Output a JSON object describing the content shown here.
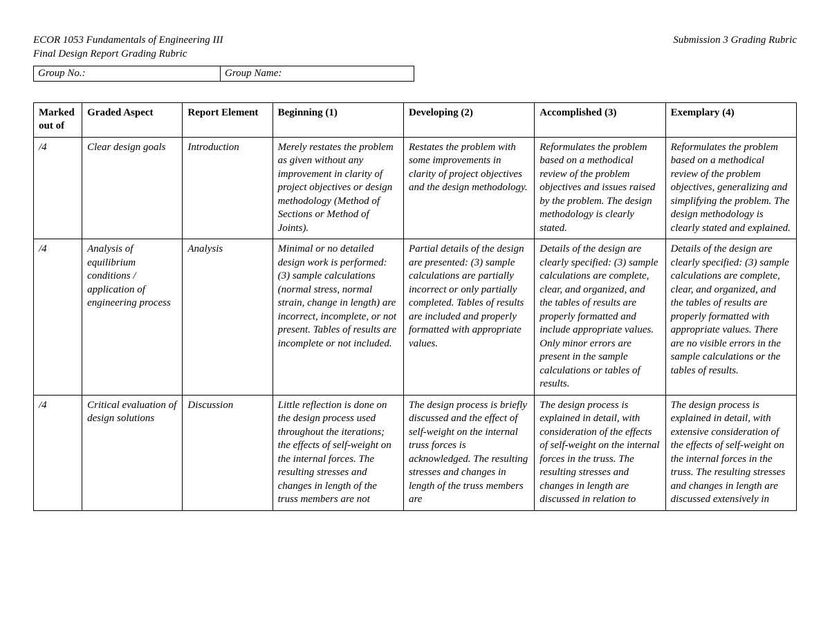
{
  "header": {
    "course": "ECOR 1053 Fundamentals of Engineering III",
    "subtitle": "Final Design Report Grading Rubric",
    "right": "Submission 3 Grading Rubric"
  },
  "group": {
    "no_label": "Group No.:",
    "name_label": "Group Name:"
  },
  "rubric": {
    "type": "table",
    "columns": [
      {
        "label": "Marked out of",
        "class": "col-marked"
      },
      {
        "label": "Graded Aspect",
        "class": "col-aspect"
      },
      {
        "label": "Report Element",
        "class": "col-element"
      },
      {
        "label": "Beginning (1)",
        "class": "col-level"
      },
      {
        "label": "Developing (2)",
        "class": "col-level"
      },
      {
        "label": "Accomplished (3)",
        "class": "col-level"
      },
      {
        "label": "Exemplary (4)",
        "class": "col-level"
      }
    ],
    "rows": [
      {
        "marked": "/4",
        "aspect": "Clear design goals",
        "element": "Introduction",
        "l1": "Merely restates the problem as given without any improvement in clarity of project objectives or design methodology (Method of Sections or Method of Joints).",
        "l2": "Restates the problem with some improvements in clarity of project objectives and the design methodology.",
        "l3": "Reformulates the problem based on a methodical review of the problem objectives and issues raised by the problem. The design methodology is clearly stated.",
        "l4": "Reformulates the problem based on a methodical review of the problem objectives, generalizing and simplifying the problem. The design methodology is clearly stated and explained."
      },
      {
        "marked": "/4",
        "aspect": "Analysis of equilibrium conditions / application of engineering process",
        "element": "Analysis",
        "l1": "Minimal or no detailed design work is performed: (3) sample calculations (normal stress, normal strain, change in length) are incorrect, incomplete, or not present. Tables of results are incomplete or not included.",
        "l2": "Partial details of the design are presented: (3) sample calculations are partially incorrect or only partially completed. Tables of results are included and properly formatted with appropriate values.",
        "l3": "Details of the design are clearly specified: (3) sample calculations are complete, clear, and organized, and the tables of results are properly formatted and include appropriate values. Only minor errors are present in the sample calculations or tables of results.",
        "l4": "Details of the design are clearly specified: (3) sample calculations are complete, clear, and organized, and the tables of results are properly formatted with appropriate values. There are no visible errors in the sample calculations or the tables of results."
      },
      {
        "marked": "/4",
        "aspect": "Critical evaluation of design solutions",
        "element": "Discussion",
        "l1": "Little reflection is done on the design process used throughout the iterations; the effects of self-weight on the internal forces. The resulting stresses and changes in length of the truss members are not",
        "l2": "The design process is briefly discussed and the effect of self-weight on the internal truss forces is acknowledged. The resulting stresses and changes in length of the truss members are",
        "l3": "The design process is explained in detail, with consideration of the effects of self-weight on the internal forces in the truss. The resulting stresses and changes in length are discussed in relation to",
        "l4": "The design process is explained in detail, with extensive consideration of the effects of self-weight on the internal forces in the truss. The resulting stresses and changes in length are discussed extensively in"
      }
    ]
  }
}
